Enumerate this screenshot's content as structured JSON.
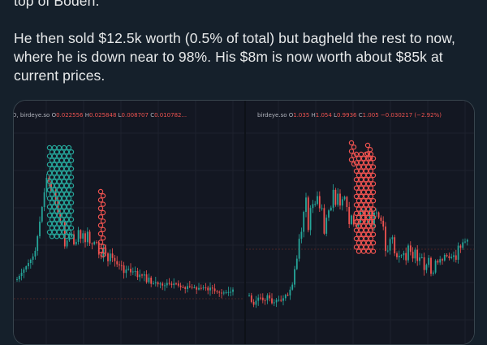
{
  "tweet": {
    "line_top": "top of Boden.",
    "line_1": "He then sold $12.5k worth (0.5% of total) but bagheld the rest to now,",
    "line_2": "where he is down near to 98%. His $8m is now worth about $85k at",
    "line_3": "current prices."
  },
  "left_chart": {
    "header_prefix": "D, birdeye.so",
    "o_label": "O",
    "o_value": "0.022556",
    "h_label": "H",
    "h_value": "0.025848",
    "l_label": "L",
    "l_value": "0.008707",
    "c_label": "C",
    "c_value": "0.010782...",
    "buy_color": "#26a69a",
    "sell_color": "#ef5350"
  },
  "right_chart": {
    "header_prefix": "birdeye.so",
    "o_label": "O",
    "o_value": "1.035",
    "h_label": "H",
    "h_value": "1.054",
    "l_label": "L",
    "l_value": "0.9936",
    "c_label": "C",
    "c_value": "1.005",
    "change": "−0.030217 (−2.92%)",
    "sell_color": "#ef5350"
  }
}
